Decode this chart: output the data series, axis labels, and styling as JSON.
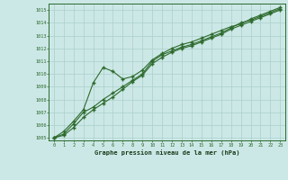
{
  "title": "Graphe pression niveau de la mer (hPa)",
  "background_color": "#cce8e6",
  "grid_color": "#aacfcc",
  "line_color": "#2d6a2d",
  "xlim": [
    -0.5,
    23.5
  ],
  "ylim": [
    1004.8,
    1015.5
  ],
  "yticks": [
    1005,
    1006,
    1007,
    1008,
    1009,
    1010,
    1011,
    1012,
    1013,
    1014,
    1015
  ],
  "xticks": [
    0,
    1,
    2,
    3,
    4,
    5,
    6,
    7,
    8,
    9,
    10,
    11,
    12,
    13,
    14,
    15,
    16,
    17,
    18,
    19,
    20,
    21,
    22,
    23
  ],
  "series": [
    [
      1005.0,
      1005.3,
      1006.1,
      1007.0,
      1007.4,
      1008.0,
      1008.5,
      1009.0,
      1009.5,
      1010.0,
      1011.0,
      1011.5,
      1011.8,
      1012.1,
      1012.3,
      1012.6,
      1012.9,
      1013.2,
      1013.6,
      1014.0,
      1014.2,
      1014.5,
      1014.8,
      1015.1
    ],
    [
      1005.0,
      1005.5,
      1006.3,
      1007.2,
      1009.3,
      1010.5,
      1010.2,
      1009.6,
      1009.8,
      1010.3,
      1011.1,
      1011.6,
      1012.0,
      1012.3,
      1012.5,
      1012.8,
      1013.1,
      1013.4,
      1013.7,
      1013.9,
      1014.3,
      1014.6,
      1014.9,
      1015.2
    ],
    [
      1005.0,
      1005.2,
      1005.8,
      1006.6,
      1007.2,
      1007.7,
      1008.2,
      1008.8,
      1009.4,
      1009.9,
      1010.8,
      1011.3,
      1011.7,
      1012.0,
      1012.2,
      1012.5,
      1012.8,
      1013.1,
      1013.5,
      1013.8,
      1014.1,
      1014.4,
      1014.7,
      1015.0
    ]
  ]
}
